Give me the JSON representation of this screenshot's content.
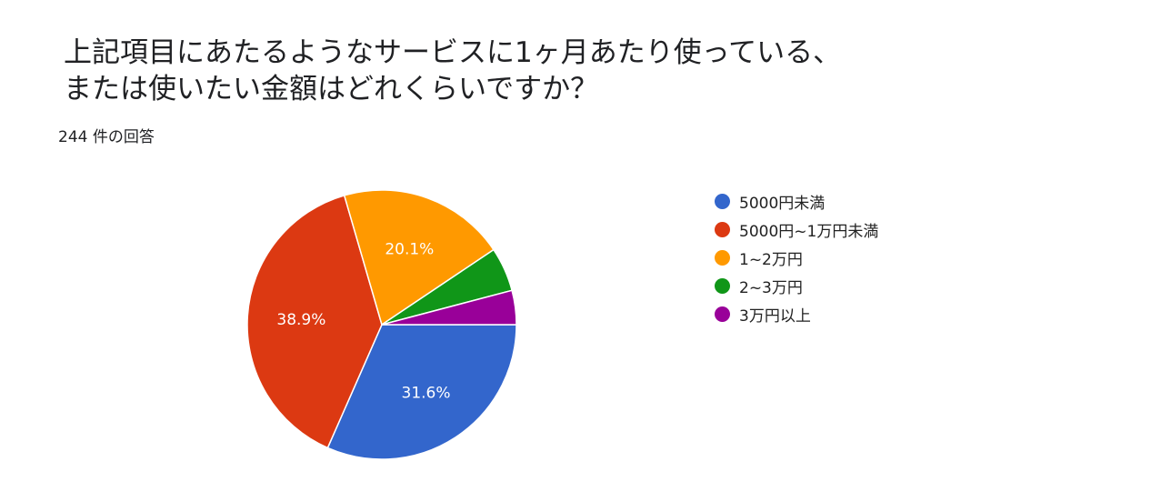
{
  "title": {
    "line1": "上記項目にあたるようなサービスに1ヶ月あたり使っている、",
    "line2": "または使いたい金額はどれくらいですか？"
  },
  "response_count": "244 件の回答",
  "chart_data": {
    "type": "pie",
    "title": "上記項目にあたるようなサービスに1ヶ月あたり使っている、または使いたい金額はどれくらいですか？",
    "categories": [
      "5000円未満",
      "5000円~1万円未満",
      "1~2万円",
      "2~3万円",
      "3万円以上"
    ],
    "values": [
      31.6,
      38.9,
      20.1,
      5.3,
      4.1
    ],
    "labels": [
      "31.6%",
      "38.9%",
      "20.1%",
      "",
      ""
    ],
    "colors": [
      "#3366cc",
      "#dc3912",
      "#ff9900",
      "#109618",
      "#990099"
    ],
    "legend_position": "right"
  }
}
